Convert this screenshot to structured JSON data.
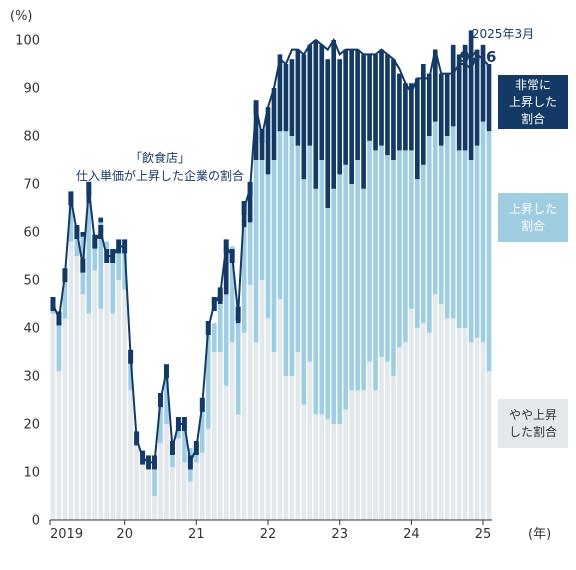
{
  "chart_data": {
    "type": "bar",
    "y_unit": "(%)",
    "x_unit": "(年)",
    "ylim": [
      0,
      100
    ],
    "y_ticks": [
      0,
      10,
      20,
      30,
      40,
      50,
      60,
      70,
      80,
      90,
      100
    ],
    "x_tick_labels": [
      {
        "label": "2019",
        "month_index": 1
      },
      {
        "label": "20",
        "month_index": 12
      },
      {
        "label": "21",
        "month_index": 24
      },
      {
        "label": "22",
        "month_index": 36
      },
      {
        "label": "23",
        "month_index": 48
      },
      {
        "label": "24",
        "month_index": 60
      },
      {
        "label": "25",
        "month_index": 72
      }
    ],
    "grid": false,
    "line_label": "「飲食店」\n仕入単価が上昇した企業の割合",
    "latest_label": "2025年3月",
    "latest_value": "94.6",
    "legend": {
      "high": "非常に\n上昇した\n割合",
      "rise": "上昇した\n割合",
      "some": "やや上昇\nした割合"
    },
    "colors": {
      "high": "#133a66",
      "rise": "#9fcde2",
      "some": "#e3e8ec",
      "line": "#133a66"
    },
    "series": [
      {
        "name": "やや上昇した割合",
        "values": [
          43,
          31,
          42,
          58,
          55,
          47,
          43,
          52,
          44,
          55,
          43,
          50,
          48,
          27,
          16,
          12,
          11,
          5,
          16,
          20,
          11,
          17,
          12,
          8,
          12,
          14,
          19,
          35,
          35,
          28,
          37,
          22,
          39,
          49,
          37,
          50,
          42,
          35,
          46,
          30,
          30,
          35,
          24,
          33,
          22,
          22,
          21,
          20,
          20,
          23,
          27,
          27,
          27,
          33,
          27,
          34,
          33,
          30,
          36,
          37,
          44,
          40,
          41,
          39,
          47,
          45,
          42,
          42,
          40,
          40,
          37,
          38,
          37,
          31
        ]
      },
      {
        "name": "上昇した割合",
        "values": [
          2,
          10,
          8,
          8,
          5,
          12,
          23,
          6,
          18,
          3,
          12,
          7,
          9,
          7,
          1,
          1,
          1,
          7,
          9,
          10,
          4,
          3,
          8,
          7,
          3,
          10,
          21,
          6,
          10,
          19,
          20,
          19,
          22,
          13,
          38,
          25,
          30,
          40,
          35,
          51,
          50,
          43,
          47,
          45,
          47,
          53,
          44,
          49,
          52,
          51,
          43,
          48,
          42,
          46,
          50,
          44,
          43,
          45,
          41,
          40,
          33,
          31,
          33,
          41,
          36,
          33,
          38,
          40,
          37,
          37,
          38,
          40,
          46,
          50
        ]
      },
      {
        "name": "非常に上昇した割合",
        "values": [
          0,
          0,
          0,
          1,
          1,
          1,
          2,
          0,
          1,
          0,
          0,
          0,
          0,
          0,
          0,
          0,
          0,
          0,
          0,
          1,
          0,
          0,
          0,
          0,
          0,
          0,
          0,
          0,
          2,
          10,
          0,
          2,
          4,
          7,
          11,
          5,
          14,
          15,
          16,
          14,
          16,
          20,
          26,
          21,
          31,
          24,
          31,
          31,
          24,
          24,
          28,
          23,
          28,
          18,
          20,
          20,
          21,
          21,
          16,
          14,
          14,
          21,
          21,
          13,
          15,
          15,
          13,
          17,
          20,
          22,
          27,
          20,
          16,
          14
        ]
      }
    ],
    "total_line": [
      45,
      42,
      51,
      67,
      60,
      53,
      69,
      58,
      60,
      55,
      55,
      57,
      57,
      34,
      17,
      13,
      12,
      12,
      25,
      31,
      15,
      20,
      20,
      12,
      15,
      24,
      40,
      45,
      47,
      57,
      55,
      43,
      65,
      69,
      86,
      80,
      86,
      90,
      96,
      95,
      98,
      98,
      97,
      99,
      100,
      99,
      98,
      100,
      97,
      98,
      98,
      98,
      97,
      97,
      97,
      98,
      97,
      96,
      94,
      91,
      89,
      92,
      92,
      92,
      98,
      93,
      93,
      93,
      95,
      95,
      94,
      97,
      96,
      94.6
    ]
  }
}
